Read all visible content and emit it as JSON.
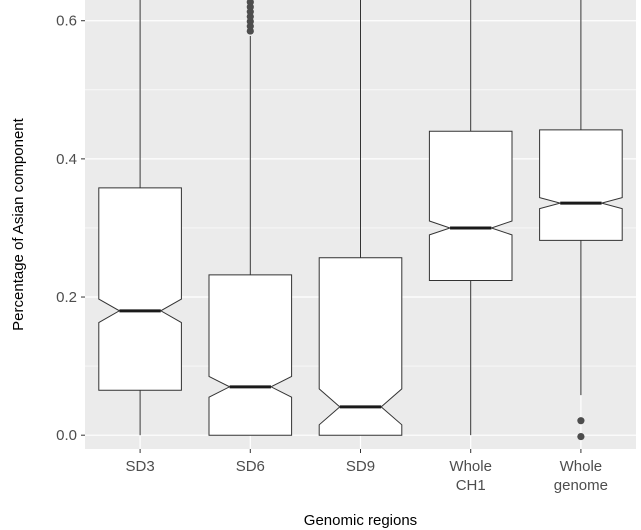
{
  "chart_data": {
    "type": "boxplot",
    "notched": true,
    "xlabel": "Genomic regions",
    "ylabel": "Percentage of Asian component",
    "ylim": [
      -0.02,
      0.63
    ],
    "yticks": [
      0.0,
      0.2,
      0.4,
      0.6
    ],
    "ytick_labels": [
      "0.0",
      "0.2",
      "0.4",
      "0.6"
    ],
    "grid": true,
    "panel_background": "#ebebeb",
    "grid_color": "#ffffff",
    "box_fill": "#ffffff",
    "line_color": "#333333",
    "outlier_color": "#4d4d4d",
    "categories": [
      {
        "label_lines": [
          "SD3"
        ],
        "whisker_low": 0.0,
        "q1": 0.065,
        "median": 0.18,
        "q3": 0.358,
        "notch_low": 0.163,
        "notch_high": 0.197,
        "whisker_high": 0.63,
        "outliers": []
      },
      {
        "label_lines": [
          "SD6"
        ],
        "whisker_low": 0.0,
        "q1": 0.0,
        "median": 0.07,
        "q3": 0.232,
        "notch_low": 0.055,
        "notch_high": 0.085,
        "whisker_high": 0.578,
        "outliers": [
          0.585,
          0.592,
          0.599,
          0.606,
          0.613,
          0.62,
          0.627
        ]
      },
      {
        "label_lines": [
          "SD9"
        ],
        "whisker_low": 0.0,
        "q1": 0.0,
        "median": 0.041,
        "q3": 0.257,
        "notch_low": 0.015,
        "notch_high": 0.067,
        "whisker_high": 0.63,
        "outliers": []
      },
      {
        "label_lines": [
          "Whole",
          "CH1"
        ],
        "whisker_low": 0.0,
        "q1": 0.224,
        "median": 0.3,
        "q3": 0.44,
        "notch_low": 0.29,
        "notch_high": 0.31,
        "whisker_high": 0.63,
        "outliers": []
      },
      {
        "label_lines": [
          "Whole",
          "genome"
        ],
        "whisker_low": 0.058,
        "q1": 0.282,
        "median": 0.336,
        "q3": 0.442,
        "notch_low": 0.328,
        "notch_high": 0.344,
        "whisker_high": 0.63,
        "outliers": [
          0.021,
          -0.002
        ]
      }
    ]
  }
}
